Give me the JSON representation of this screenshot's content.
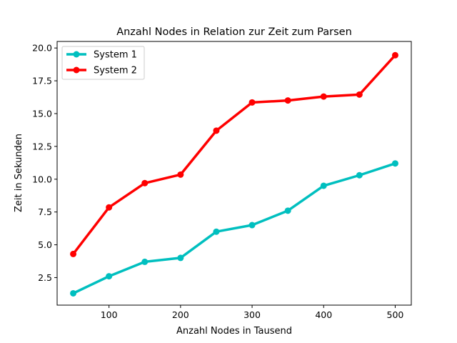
{
  "chart_data": {
    "type": "line",
    "title": "Anzahl Nodes in Relation zur Zeit zum Parsen",
    "xlabel": "Anzahl Nodes in Tausend",
    "ylabel": "Zeit in Sekunden",
    "x": [
      50,
      100,
      150,
      200,
      250,
      300,
      350,
      400,
      450,
      500
    ],
    "xlim": [
      27.5,
      522.5
    ],
    "ylim": [
      0.4,
      20.5
    ],
    "xticks": [
      100,
      200,
      300,
      400,
      500
    ],
    "xtick_labels": [
      "100",
      "200",
      "300",
      "400",
      "500"
    ],
    "yticks": [
      2.5,
      5.0,
      7.5,
      10.0,
      12.5,
      15.0,
      17.5,
      20.0
    ],
    "ytick_labels": [
      "2.5",
      "5.0",
      "7.5",
      "10.0",
      "12.5",
      "15.0",
      "17.5",
      "20.0"
    ],
    "grid": false,
    "legend_position": "top-left",
    "series": [
      {
        "name": "System 1",
        "color": "#00bfbf",
        "values": [
          1.3,
          2.6,
          3.7,
          4.0,
          6.0,
          6.5,
          7.6,
          9.5,
          10.3,
          11.2
        ]
      },
      {
        "name": "System 2",
        "color": "#ff0000",
        "values": [
          4.3,
          7.85,
          9.7,
          10.35,
          13.7,
          15.85,
          16.0,
          16.3,
          16.45,
          19.45
        ]
      }
    ]
  }
}
